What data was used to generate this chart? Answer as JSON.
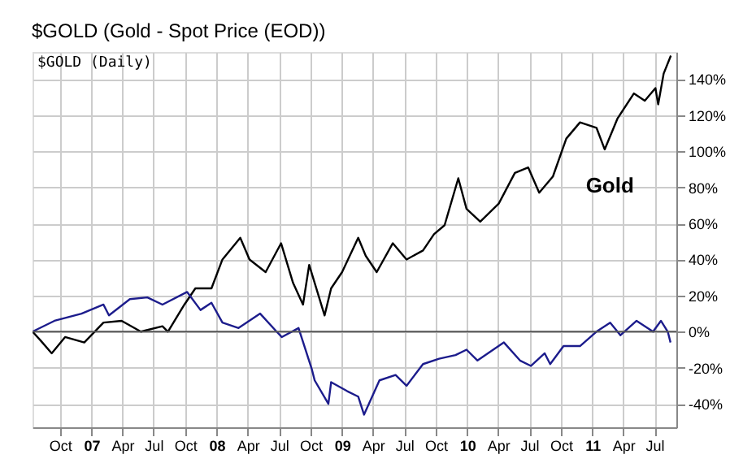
{
  "chart_data": {
    "type": "line",
    "title": "$GOLD (Gold - Spot Price (EOD))",
    "subtitle": "$GOLD (Daily)",
    "xlim": [
      "2006-07-13",
      "2011-09-03"
    ],
    "xticks": [
      {
        "value": "2006-10-01",
        "label": "Oct"
      },
      {
        "value": "2007-01-01",
        "label": "07"
      },
      {
        "value": "2007-04-01",
        "label": "Apr"
      },
      {
        "value": "2007-07-01",
        "label": "Jul"
      },
      {
        "value": "2007-10-01",
        "label": "Oct"
      },
      {
        "value": "2008-01-01",
        "label": "08"
      },
      {
        "value": "2008-04-01",
        "label": "Apr"
      },
      {
        "value": "2008-07-01",
        "label": "Jul"
      },
      {
        "value": "2008-10-01",
        "label": "Oct"
      },
      {
        "value": "2009-01-01",
        "label": "09"
      },
      {
        "value": "2009-04-01",
        "label": "Apr"
      },
      {
        "value": "2009-07-01",
        "label": "Jul"
      },
      {
        "value": "2009-10-01",
        "label": "Oct"
      },
      {
        "value": "2010-01-01",
        "label": "10"
      },
      {
        "value": "2010-04-01",
        "label": "Apr"
      },
      {
        "value": "2010-07-01",
        "label": "Jul"
      },
      {
        "value": "2010-10-01",
        "label": "Oct"
      },
      {
        "value": "2011-01-01",
        "label": "11"
      },
      {
        "value": "2011-04-01",
        "label": "Apr"
      },
      {
        "value": "2011-07-01",
        "label": "Jul"
      }
    ],
    "ylim": [
      -53,
      155
    ],
    "yticks": [
      {
        "value": -40,
        "label": "-40%"
      },
      {
        "value": -20,
        "label": "-20%"
      },
      {
        "value": 0,
        "label": "0%"
      },
      {
        "value": 20,
        "label": "20%"
      },
      {
        "value": 40,
        "label": "40%"
      },
      {
        "value": 60,
        "label": "60%"
      },
      {
        "value": 80,
        "label": "80%"
      },
      {
        "value": 100,
        "label": "100%"
      },
      {
        "value": 120,
        "label": "120%"
      },
      {
        "value": 140,
        "label": "140%"
      }
    ],
    "grid": true,
    "marker": "none",
    "line_style": "solid",
    "ref_lines": [
      {
        "axis": "y",
        "value": 0,
        "color": "#555555"
      }
    ],
    "series": [
      {
        "name": "Gold",
        "color": "#000000",
        "x": [
          "2006-07-13",
          "2006-08-06",
          "2006-09-07",
          "2006-10-16",
          "2006-12-11",
          "2007-02-05",
          "2007-03-30",
          "2007-05-25",
          "2007-07-27",
          "2007-08-12",
          "2007-09-29",
          "2007-10-31",
          "2007-12-17",
          "2008-01-18",
          "2008-03-10",
          "2008-04-06",
          "2008-05-23",
          "2008-07-07",
          "2008-08-11",
          "2008-09-09",
          "2008-09-27",
          "2008-11-11",
          "2008-11-30",
          "2009-01-01",
          "2009-02-17",
          "2009-03-11",
          "2009-04-12",
          "2009-05-29",
          "2009-07-08",
          "2009-08-25",
          "2009-09-26",
          "2009-10-27",
          "2009-12-06",
          "2009-12-30",
          "2010-02-08",
          "2010-04-03",
          "2010-05-20",
          "2010-06-28",
          "2010-07-30",
          "2010-09-08",
          "2010-10-17",
          "2010-11-26",
          "2011-01-13",
          "2011-02-06",
          "2011-03-15",
          "2011-05-02",
          "2011-06-03",
          "2011-07-04",
          "2011-07-12",
          "2011-07-28",
          "2011-08-18"
        ],
        "values": [
          0,
          -5,
          -12,
          -3,
          -6,
          5,
          6,
          0,
          3,
          0,
          15,
          24,
          24,
          40,
          52,
          40,
          33,
          49,
          27,
          15,
          37,
          9,
          24,
          33,
          52,
          42,
          33,
          49,
          40,
          45,
          54,
          59,
          85,
          68,
          61,
          71,
          88,
          91,
          77,
          86,
          107,
          116,
          113,
          101,
          118,
          132,
          128,
          135,
          126,
          143,
          153
        ]
      },
      {
        "color": "#1c1c8c",
        "x": [
          "2006-07-13",
          "2006-09-15",
          "2006-12-03",
          "2007-02-05",
          "2007-02-21",
          "2007-04-23",
          "2007-06-13",
          "2007-07-27",
          "2007-10-07",
          "2007-11-15",
          "2007-12-17",
          "2008-01-18",
          "2008-03-05",
          "2008-05-07",
          "2008-06-24",
          "2008-07-09",
          "2008-08-27",
          "2008-10-05",
          "2008-10-13",
          "2008-11-22",
          "2008-11-30",
          "2009-01-16",
          "2009-02-17",
          "2009-03-06",
          "2009-04-20",
          "2009-06-06",
          "2009-07-08",
          "2009-08-25",
          "2009-10-11",
          "2009-11-28",
          "2009-12-30",
          "2010-01-31",
          "2010-04-18",
          "2010-06-04",
          "2010-07-06",
          "2010-08-15",
          "2010-08-31",
          "2010-10-09",
          "2010-11-26",
          "2011-01-13",
          "2011-02-22",
          "2011-03-24",
          "2011-05-10",
          "2011-06-27",
          "2011-07-20",
          "2011-08-09",
          "2011-08-17"
        ],
        "values": [
          0,
          6,
          10,
          15,
          9,
          18,
          19,
          15,
          22,
          12,
          16,
          5,
          2,
          10,
          0,
          -3,
          2,
          -21,
          -27,
          -40,
          -28,
          -33,
          -36,
          -46,
          -27,
          -24,
          -30,
          -18,
          -15,
          -13,
          -10,
          -16,
          -6,
          -16,
          -19,
          -12,
          -18,
          -8,
          -8,
          0,
          5,
          -2,
          6,
          0,
          6,
          0,
          -6
        ]
      }
    ]
  }
}
